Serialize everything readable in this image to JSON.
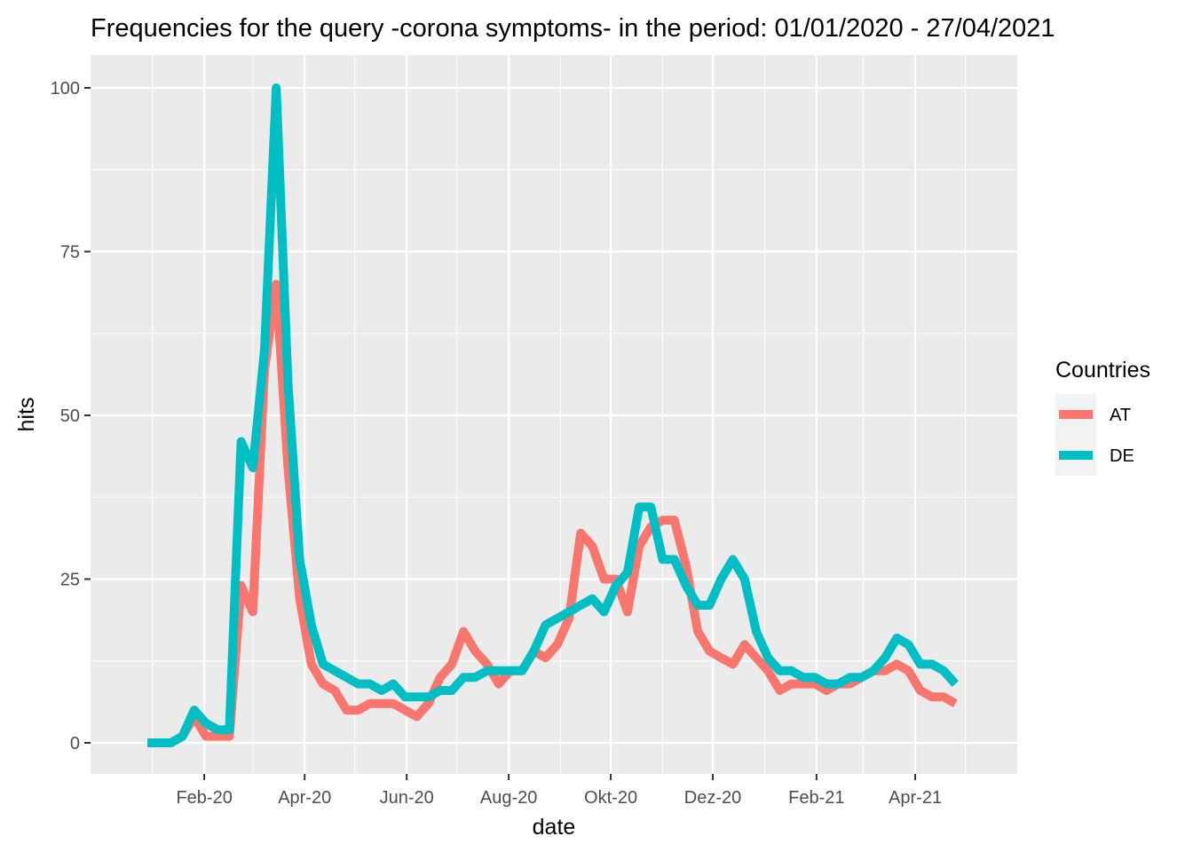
{
  "chart_data": {
    "type": "line",
    "title": "Frequencies for the query -corona symptoms- in the period: 01/01/2020 - 27/04/2021",
    "xlabel": "date",
    "ylabel": "hits",
    "ylim": [
      0,
      100
    ],
    "yticks": [
      0,
      25,
      50,
      75,
      100
    ],
    "xlim": [
      "2019-11-25",
      "2021-06-01"
    ],
    "xticks": [
      {
        "date": "2020-02-01",
        "label": "Feb-20"
      },
      {
        "date": "2020-04-01",
        "label": "Apr-20"
      },
      {
        "date": "2020-06-01",
        "label": "Jun-20"
      },
      {
        "date": "2020-08-01",
        "label": "Aug-20"
      },
      {
        "date": "2020-10-01",
        "label": "Okt-20"
      },
      {
        "date": "2020-12-01",
        "label": "Dez-20"
      },
      {
        "date": "2021-02-01",
        "label": "Feb-21"
      },
      {
        "date": "2021-04-01",
        "label": "Apr-21"
      }
    ],
    "minor_grid": [
      "2020-01-01",
      "2020-03-01",
      "2020-05-01",
      "2020-07-01",
      "2020-09-01",
      "2020-11-01",
      "2021-01-01",
      "2021-03-01",
      "2021-05-01"
    ],
    "grid": true,
    "legend": {
      "title": "Countries",
      "position": "right"
    },
    "x": [
      "2019-12-29",
      "2020-01-05",
      "2020-01-12",
      "2020-01-19",
      "2020-01-26",
      "2020-02-02",
      "2020-02-09",
      "2020-02-16",
      "2020-02-23",
      "2020-03-01",
      "2020-03-08",
      "2020-03-15",
      "2020-03-22",
      "2020-03-29",
      "2020-04-05",
      "2020-04-12",
      "2020-04-19",
      "2020-04-26",
      "2020-05-03",
      "2020-05-10",
      "2020-05-17",
      "2020-05-24",
      "2020-05-31",
      "2020-06-07",
      "2020-06-14",
      "2020-06-21",
      "2020-06-28",
      "2020-07-05",
      "2020-07-12",
      "2020-07-19",
      "2020-07-26",
      "2020-08-02",
      "2020-08-09",
      "2020-08-16",
      "2020-08-23",
      "2020-08-30",
      "2020-09-06",
      "2020-09-13",
      "2020-09-20",
      "2020-09-27",
      "2020-10-04",
      "2020-10-11",
      "2020-10-18",
      "2020-10-25",
      "2020-11-01",
      "2020-11-08",
      "2020-11-15",
      "2020-11-22",
      "2020-11-29",
      "2020-12-06",
      "2020-12-13",
      "2020-12-20",
      "2020-12-27",
      "2021-01-03",
      "2021-01-10",
      "2021-01-17",
      "2021-01-24",
      "2021-01-31",
      "2021-02-07",
      "2021-02-14",
      "2021-02-21",
      "2021-02-28",
      "2021-03-07",
      "2021-03-14",
      "2021-03-21",
      "2021-03-28",
      "2021-04-04",
      "2021-04-11",
      "2021-04-18",
      "2021-04-25"
    ],
    "series": [
      {
        "name": "AT",
        "color": "#F8766D",
        "values": [
          0,
          0,
          0,
          1,
          4,
          1,
          1,
          1,
          24,
          20,
          57,
          70,
          42,
          22,
          12,
          9,
          8,
          5,
          5,
          6,
          6,
          6,
          5,
          4,
          6,
          10,
          12,
          17,
          14,
          12,
          9,
          11,
          11,
          14,
          13,
          15,
          19,
          32,
          30,
          25,
          25,
          20,
          30,
          33,
          34,
          34,
          27,
          17,
          14,
          13,
          12,
          15,
          13,
          11,
          8,
          9,
          9,
          9,
          8,
          9,
          9,
          10,
          11,
          11,
          12,
          11,
          8,
          7,
          7,
          6
        ]
      },
      {
        "name": "DE",
        "color": "#00BFC4",
        "values": [
          0,
          0,
          0,
          1,
          5,
          3,
          2,
          2,
          46,
          42,
          60,
          100,
          55,
          28,
          18,
          12,
          11,
          10,
          9,
          9,
          8,
          9,
          7,
          7,
          7,
          8,
          8,
          10,
          10,
          11,
          11,
          11,
          11,
          14,
          18,
          19,
          20,
          21,
          22,
          20,
          24,
          26,
          36,
          36,
          28,
          28,
          24,
          21,
          21,
          25,
          28,
          25,
          17,
          13,
          11,
          11,
          10,
          10,
          9,
          9,
          10,
          10,
          11,
          13,
          16,
          15,
          12,
          12,
          11,
          9
        ]
      }
    ]
  }
}
